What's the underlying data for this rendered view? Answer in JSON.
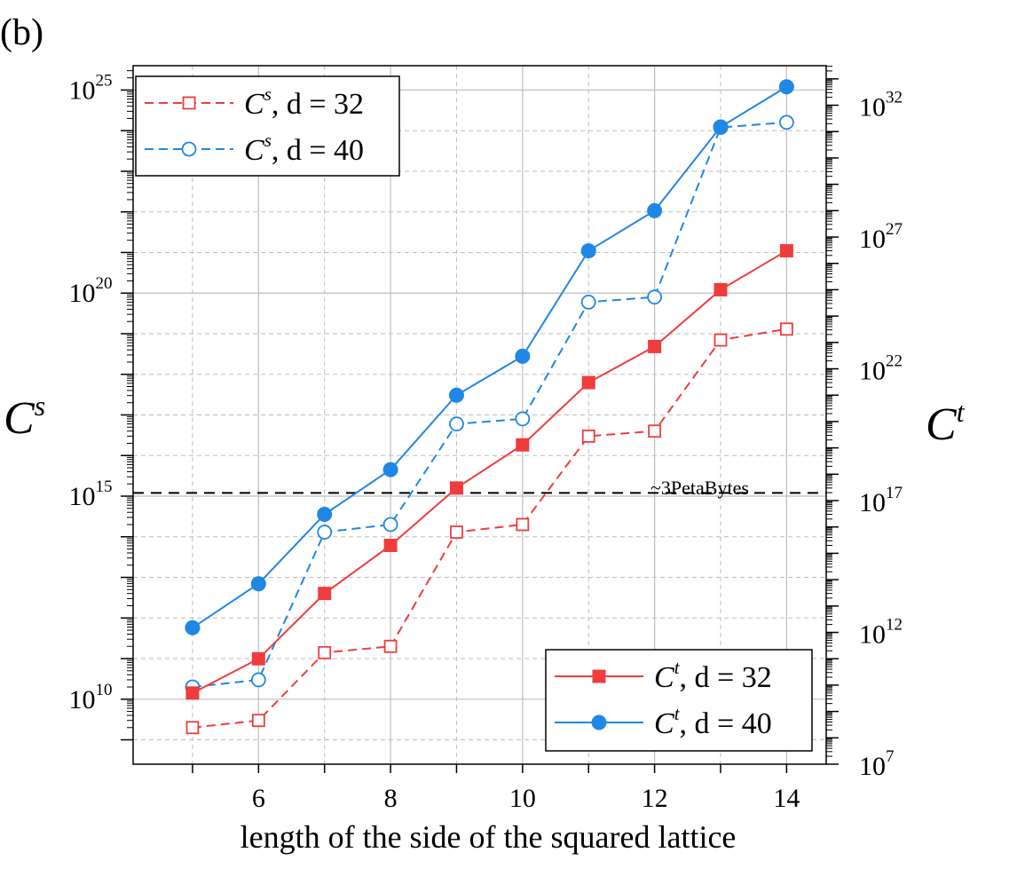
{
  "panel_label": "(b)",
  "annotation": "~3PetaBytes",
  "colors": {
    "red": "#f03c3c",
    "blue": "#1f87e6",
    "grid": "#bdbdbd",
    "axis": "#000000"
  },
  "chart_data": {
    "type": "line",
    "xlabel": "length of the side of the squared lattice",
    "ylabel_left": "C^s",
    "ylabel_right": "C^t",
    "x": [
      5,
      6,
      7,
      8,
      9,
      10,
      11,
      12,
      13,
      14
    ],
    "xlim": [
      4.1,
      14.6
    ],
    "x_ticks": [
      6,
      8,
      10,
      12,
      14
    ],
    "left_axis": {
      "scale": "log",
      "exp_range": [
        8.4,
        25.6
      ],
      "tick_exponents": [
        10,
        15,
        20,
        25
      ]
    },
    "right_axis": {
      "scale": "log",
      "exp_range": [
        7.0,
        33.5
      ],
      "tick_exponents": [
        7,
        12,
        17,
        22,
        27,
        32
      ]
    },
    "hline": {
      "axis": "left",
      "value": 1200000000000000.0
    },
    "grid": true,
    "series": [
      {
        "name": "d = 32",
        "label_symbol": "C^s",
        "axis": "left",
        "style": "dashed",
        "marker": "open-square",
        "color": "red",
        "values": [
          2000000000.0,
          3000000000.0,
          140000000000.0,
          200000000000.0,
          130000000000000.0,
          200000000000000.0,
          3e+16,
          4e+16,
          7e+18,
          1.3e+19
        ]
      },
      {
        "name": "d = 40",
        "label_symbol": "C^s",
        "axis": "left",
        "style": "dashed",
        "marker": "open-circle",
        "color": "blue",
        "values": [
          20000000000.0,
          30000000000.0,
          130000000000000.0,
          200000000000000.0,
          6e+16,
          8e+16,
          6e+19,
          8e+19,
          1.2e+24,
          1.6e+24
        ]
      },
      {
        "name": "d = 32",
        "label_symbol": "C^t",
        "axis": "right",
        "style": "solid",
        "marker": "filled-square",
        "color": "red",
        "values": [
          5000000000.0,
          100000000000.0,
          30000000000000.0,
          2000000000000000.0,
          3e+17,
          1.3e+19,
          3e+21,
          7e+22,
          1e+25,
          3e+26
        ]
      },
      {
        "name": "d = 40",
        "label_symbol": "C^t",
        "axis": "right",
        "style": "solid",
        "marker": "filled-circle",
        "color": "blue",
        "values": [
          1500000000000.0,
          70000000000000.0,
          3e+16,
          1.5e+18,
          1e+21,
          3e+22,
          3e+26,
          1e+28,
          1.5e+31,
          5e+32
        ]
      }
    ],
    "legends": [
      {
        "position": "top-left",
        "series_indices": [
          0,
          1
        ]
      },
      {
        "position": "bottom-right",
        "series_indices": [
          2,
          3
        ]
      }
    ]
  }
}
